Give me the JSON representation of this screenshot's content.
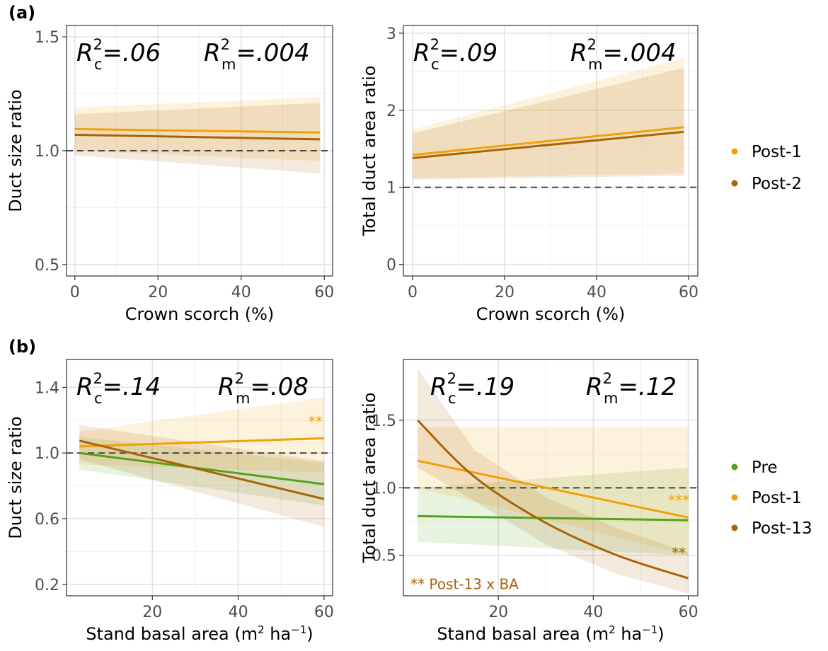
{
  "figure": {
    "panel_labels": [
      "(a)",
      "(b)"
    ],
    "legend_a": [
      {
        "label": "Post-1",
        "color": "#F2A007"
      },
      {
        "label": "Post-2",
        "color": "#A86408"
      }
    ],
    "legend_b": [
      {
        "label": "Pre",
        "color": "#56A01B"
      },
      {
        "label": "Post-1",
        "color": "#F2A007"
      },
      {
        "label": "Post-13",
        "color": "#A86408"
      }
    ]
  },
  "chart_data": [
    {
      "type": "line",
      "panel": "(a)",
      "xlabel": "Crown scorch (%)",
      "ylabel": "Duct size ratio",
      "xlim": [
        -2,
        62
      ],
      "ylim": [
        0.45,
        1.55
      ],
      "xticks": [
        0,
        20,
        40,
        60
      ],
      "xtick_labels": [
        "0",
        "20",
        "40",
        "60"
      ],
      "yticks": [
        0.5,
        1.0,
        1.5
      ],
      "ytick_labels": [
        "0.5",
        "1.0",
        "1.5"
      ],
      "reference_line": 1.0,
      "r2c_value": "=.06",
      "r2m_value": "=.004",
      "grid": true,
      "legend": "right",
      "series": [
        {
          "name": "Post-1",
          "color": "#F2A007",
          "x": [
            0,
            59
          ],
          "y": [
            1.095,
            1.08
          ],
          "ci_lower": [
            1.0,
            0.955
          ],
          "ci_upper": [
            1.19,
            1.235
          ]
        },
        {
          "name": "Post-2",
          "color": "#A86408",
          "x": [
            0,
            59
          ],
          "y": [
            1.07,
            1.05
          ],
          "ci_lower": [
            0.98,
            0.9
          ],
          "ci_upper": [
            1.16,
            1.21
          ]
        }
      ],
      "annotations": []
    },
    {
      "type": "line",
      "panel": "(a)",
      "xlabel": "Crown scorch (%)",
      "ylabel": "Total duct area ratio",
      "xlim": [
        -2,
        62
      ],
      "ylim": [
        -0.15,
        3.1
      ],
      "xticks": [
        0,
        20,
        40,
        60
      ],
      "xtick_labels": [
        "0",
        "20",
        "40",
        "60"
      ],
      "yticks": [
        0,
        1,
        2,
        3
      ],
      "ytick_labels": [
        "0",
        "1",
        "2",
        "3"
      ],
      "reference_line": 1.0,
      "r2c_value": "=.09",
      "r2m_value": "=.004",
      "grid": true,
      "legend": "right",
      "series": [
        {
          "name": "Post-1",
          "color": "#F2A007",
          "x": [
            0,
            59
          ],
          "y": [
            1.42,
            1.78
          ],
          "ci_lower": [
            1.12,
            1.18
          ],
          "ci_upper": [
            1.75,
            2.68
          ]
        },
        {
          "name": "Post-2",
          "color": "#A86408",
          "x": [
            0,
            59
          ],
          "y": [
            1.38,
            1.72
          ],
          "ci_lower": [
            1.1,
            1.15
          ],
          "ci_upper": [
            1.7,
            2.55
          ]
        }
      ],
      "annotations": []
    },
    {
      "type": "line",
      "panel": "(b)",
      "xlabel": "Stand basal area (m² ha⁻¹)",
      "ylabel": "Duct size ratio",
      "xlim": [
        0,
        62
      ],
      "ylim": [
        0.13,
        1.57
      ],
      "xticks": [
        20,
        40,
        60
      ],
      "xtick_labels": [
        "20",
        "40",
        "60"
      ],
      "yticks": [
        0.2,
        0.6,
        1.0,
        1.4
      ],
      "ytick_labels": [
        "0.2",
        "0.6",
        "1.0",
        "1.4"
      ],
      "reference_line": 1.0,
      "r2c_value": "=.14",
      "r2m_value": "=.08",
      "grid": true,
      "legend": "right",
      "series": [
        {
          "name": "Pre",
          "color": "#56A01B",
          "x": [
            3,
            60
          ],
          "y": [
            1.0,
            0.81
          ],
          "ci_lower": [
            0.9,
            0.68
          ],
          "ci_upper": [
            1.1,
            0.94
          ]
        },
        {
          "name": "Post-1",
          "color": "#F2A007",
          "x": [
            3,
            60
          ],
          "y": [
            1.04,
            1.09
          ],
          "ci_lower": [
            0.93,
            0.88
          ],
          "ci_upper": [
            1.13,
            1.34
          ]
        },
        {
          "name": "Post-13",
          "color": "#A86408",
          "x": [
            3,
            60
          ],
          "y": [
            1.075,
            0.72
          ],
          "ci_lower": [
            0.96,
            0.55
          ],
          "ci_upper": [
            1.17,
            0.95
          ]
        }
      ],
      "annotations": [
        {
          "text": "**",
          "color": "#F2A007",
          "x": 58,
          "y": 1.16
        }
      ]
    },
    {
      "type": "line",
      "panel": "(b)",
      "xlabel": "Stand basal area (m² ha⁻¹)",
      "ylabel": "Total duct area ratio",
      "xlim": [
        0,
        62
      ],
      "ylim": [
        0.2,
        1.95
      ],
      "xticks": [
        20,
        40,
        60
      ],
      "xtick_labels": [
        "20",
        "40",
        "60"
      ],
      "yticks": [
        0.5,
        1.0,
        1.5
      ],
      "ytick_labels": [
        "0.5",
        "1.0",
        "1.5"
      ],
      "reference_line": 1.0,
      "r2c_value": "=.19",
      "r2m_value": "=.12",
      "grid": true,
      "legend": "right",
      "series": [
        {
          "name": "Pre",
          "color": "#56A01B",
          "x": [
            3,
            60
          ],
          "y": [
            0.79,
            0.76
          ],
          "ci_lower": [
            0.6,
            0.5
          ],
          "ci_upper": [
            1.0,
            1.15
          ]
        },
        {
          "name": "Post-1",
          "color": "#F2A007",
          "x": [
            3,
            60
          ],
          "y": [
            1.2,
            0.78
          ],
          "ci_lower": [
            1.0,
            0.5
          ],
          "ci_upper": [
            1.45,
            1.45
          ]
        },
        {
          "name": "Post-13",
          "color": "#A86408",
          "x": [
            3,
            15,
            30,
            45,
            60
          ],
          "y": [
            1.5,
            1.08,
            0.74,
            0.5,
            0.33
          ],
          "ci_lower": [
            1.15,
            0.9,
            0.58,
            0.36,
            0.22
          ],
          "ci_upper": [
            1.88,
            1.28,
            0.93,
            0.7,
            0.52
          ]
        }
      ],
      "annotations": [
        {
          "text": "***",
          "color": "#F2A007",
          "x": 58,
          "y": 0.87
        },
        {
          "text": "**",
          "color": "#A86408",
          "x": 58,
          "y": 0.48
        },
        {
          "text": "** Post-13 x BA",
          "color": "#A86408",
          "x": 1.5,
          "y": 0.25
        }
      ]
    }
  ]
}
